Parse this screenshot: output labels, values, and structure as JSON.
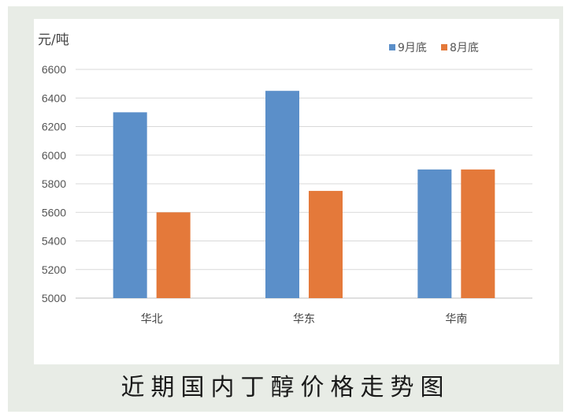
{
  "caption": "近期国内丁醇价格走势图",
  "chart_data": {
    "type": "bar",
    "unit_label": "元/吨",
    "categories": [
      "华北",
      "华东",
      "华南"
    ],
    "series": [
      {
        "name": "9月底",
        "color": "#5b8fc9",
        "values": [
          6300,
          6450,
          5900
        ]
      },
      {
        "name": "8月底",
        "color": "#e4793a",
        "values": [
          5600,
          5750,
          5900
        ]
      }
    ],
    "ylim": [
      5000,
      6600
    ],
    "yticks": [
      5000,
      5200,
      5400,
      5600,
      5800,
      6000,
      6200,
      6400,
      6600
    ],
    "grid": true,
    "legend_position": "top-right"
  }
}
